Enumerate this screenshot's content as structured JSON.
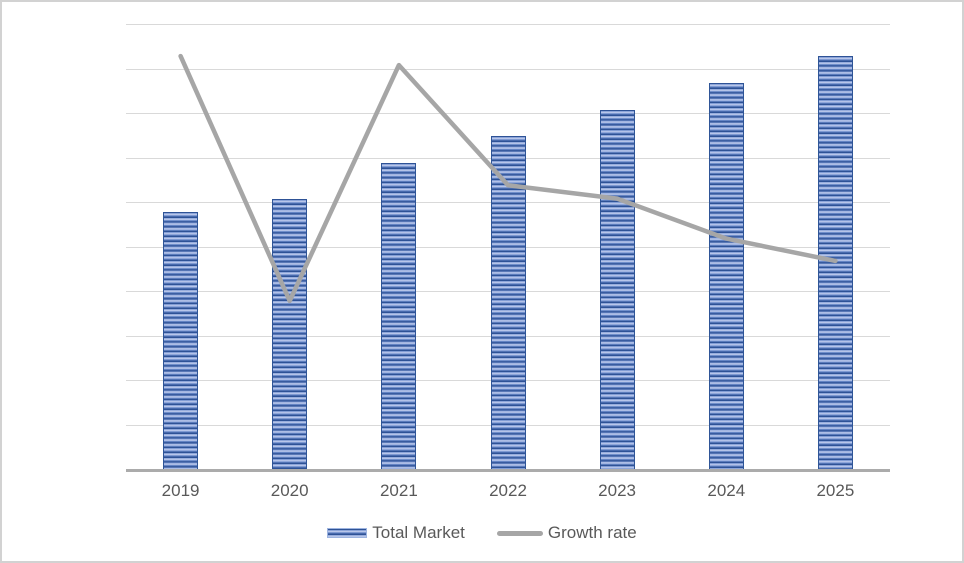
{
  "frame": {
    "background_color": "#ffffff",
    "border_color": "#d2d2d2"
  },
  "chart_data": {
    "type": "bar",
    "title": "",
    "xlabel": "",
    "ylabel": "",
    "categories": [
      "2019",
      "2020",
      "2021",
      "2022",
      "2023",
      "2024",
      "2025"
    ],
    "series": [
      {
        "name": "Total Market",
        "kind": "bar",
        "color": "#4472c4",
        "pattern": "horizontal-stripes",
        "values": [
          58,
          61,
          69,
          75,
          81,
          87,
          93
        ]
      },
      {
        "name": "Growth rate",
        "kind": "line",
        "color": "#a6a6a6",
        "line_width": 4.5,
        "values": [
          93,
          38,
          91,
          64,
          61,
          52,
          47
        ]
      }
    ],
    "ylim": [
      0,
      100
    ],
    "gridline_step": 10,
    "y_axis_labels_visible": false,
    "grid": true,
    "gridline_color": "#d9d9d9",
    "axis_line_color": "#ababab",
    "tick_label_color": "#595959",
    "legend_position": "bottom"
  },
  "legend": {
    "items": [
      {
        "label": "Total Market",
        "swatch": "bar-swatch"
      },
      {
        "label": "Growth rate",
        "swatch": "line-swatch"
      }
    ]
  }
}
